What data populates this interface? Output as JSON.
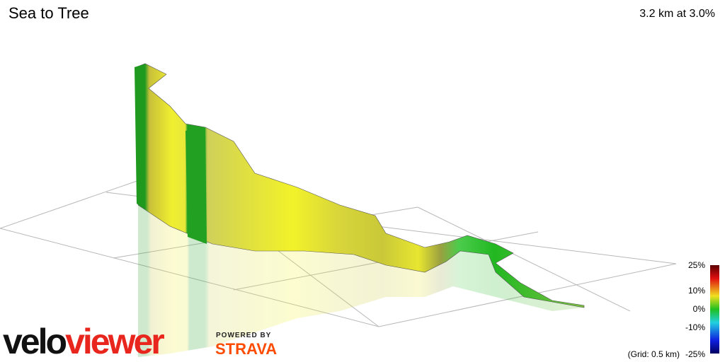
{
  "header": {
    "title": "Sea to Tree",
    "summary": "3.2 km at 3.0%"
  },
  "logo": {
    "velo": "velo",
    "viewer": "viewer",
    "powered_by": "POWERED BY",
    "strava": "STRAVA"
  },
  "legend": {
    "ticks": [
      "25%",
      "10%",
      "0%",
      "-10%",
      "-25%"
    ],
    "grid_note": "(Grid: 0.5 km)"
  }
}
